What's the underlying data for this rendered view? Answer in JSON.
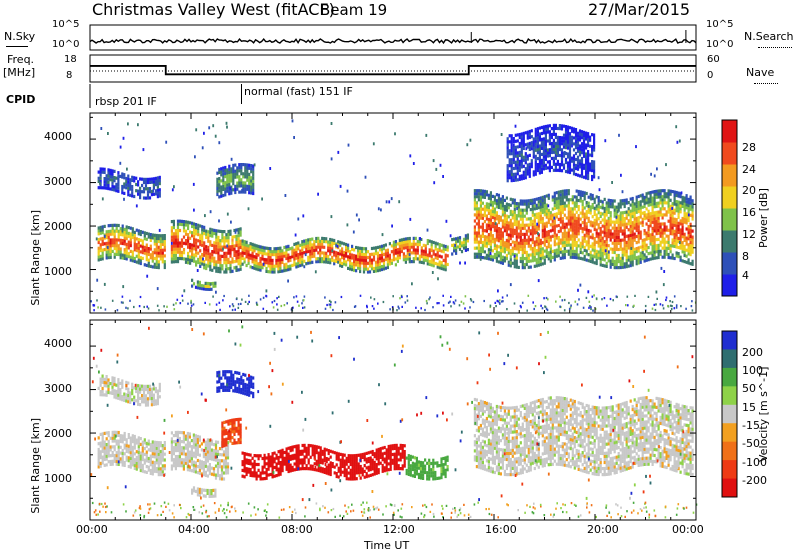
{
  "header": {
    "station": "Christmas Valley West (fitACF)",
    "beam": "Beam 19",
    "date": "27/Mar/2015"
  },
  "status_panels": {
    "nsky_label": "N.Sky",
    "nsearch_label": "N.Search",
    "noise_ticks": [
      "10^5",
      "10^0"
    ],
    "freq_label": "Freq.",
    "freq_unit": "[MHz]",
    "freq_ticks": [
      "18",
      "8"
    ],
    "nave_label": "Nave",
    "nave_ticks": [
      "60",
      "0"
    ],
    "cpid_label": "CPID",
    "cpid_segments": [
      {
        "name": "rbsp 201 IF",
        "start_h": 0,
        "end_h": 6
      },
      {
        "name": "normal (fast) 151 IF",
        "start_h": 6,
        "end_h": 24
      }
    ]
  },
  "axes": {
    "xlabel": "Time UT",
    "x_ticks": [
      "00:00",
      "04:00",
      "08:00",
      "12:00",
      "16:00",
      "20:00",
      "00:00"
    ],
    "ylabel": "Slant Range [km]",
    "y_ticks": [
      "1000",
      "2000",
      "3000",
      "4000"
    ]
  },
  "colorbars": {
    "power": {
      "label": "Power [dB]",
      "ticks": [
        "4",
        "8",
        "12",
        "16",
        "20",
        "24",
        "28"
      ],
      "colors": [
        "#1f1fe8",
        "#2e50b8",
        "#3c7a6e",
        "#7fc24a",
        "#f0d020",
        "#f39a20",
        "#f04a1e",
        "#e01414"
      ]
    },
    "velocity": {
      "label": "Velocity [m s^-1]",
      "ticks": [
        "200",
        "100",
        "50",
        "15",
        "-15",
        "-50",
        "-100",
        "-200"
      ],
      "colors": [
        "#1f2ed0",
        "#2f6e70",
        "#48a840",
        "#8ed248",
        "#c8c8c8",
        "#f2a020",
        "#f07018",
        "#ee3a14",
        "#e01010"
      ]
    }
  },
  "chart_data": [
    {
      "type": "heatmap",
      "title": "Power",
      "xlabel": "Time UT",
      "ylabel": "Slant Range [km]",
      "xlim_hours": [
        0,
        24
      ],
      "ylim_km": [
        0,
        4600
      ],
      "colorbar": {
        "label": "Power [dB]",
        "range": [
          0,
          32
        ]
      },
      "bands": [
        {
          "t0": 0.3,
          "t1": 3.0,
          "r0": 1200,
          "r1": 2000,
          "peak_db": 28
        },
        {
          "t0": 0.3,
          "t1": 2.8,
          "r0": 2800,
          "r1": 3300,
          "peak_db": 8
        },
        {
          "t0": 3.2,
          "t1": 6.0,
          "r0": 1100,
          "r1": 2100,
          "peak_db": 30
        },
        {
          "t0": 4.0,
          "t1": 5.0,
          "r0": 700,
          "r1": 900,
          "peak_db": 18
        },
        {
          "t0": 5.0,
          "t1": 6.5,
          "r0": 2700,
          "r1": 3400,
          "peak_db": 14
        },
        {
          "t0": 6.0,
          "t1": 14.2,
          "r0": 1100,
          "r1": 1700,
          "peak_db": 30
        },
        {
          "t0": 14.3,
          "t1": 15.0,
          "r0": 1500,
          "r1": 1900,
          "peak_db": 18
        },
        {
          "t0": 15.2,
          "t1": 23.9,
          "r0": 1200,
          "r1": 2800,
          "peak_db": 28
        },
        {
          "t0": 16.5,
          "t1": 20.0,
          "r0": 3200,
          "r1": 4300,
          "peak_db": 6
        }
      ]
    },
    {
      "type": "heatmap",
      "title": "Velocity",
      "xlabel": "Time UT",
      "ylabel": "Slant Range [km]",
      "xlim_hours": [
        0,
        24
      ],
      "ylim_km": [
        0,
        4600
      ],
      "colorbar": {
        "label": "Velocity [m s^-1]",
        "range": [
          -200,
          200
        ]
      },
      "bands": [
        {
          "t0": 0.3,
          "t1": 3.0,
          "r0": 1200,
          "r1": 2000,
          "vel": 0
        },
        {
          "t0": 0.3,
          "t1": 2.8,
          "r0": 2800,
          "r1": 3300,
          "vel": 0
        },
        {
          "t0": 3.2,
          "t1": 5.5,
          "r0": 1100,
          "r1": 2000,
          "vel": 0
        },
        {
          "t0": 4.0,
          "t1": 5.0,
          "r0": 700,
          "r1": 900,
          "vel": 0
        },
        {
          "t0": 5.2,
          "t1": 6.0,
          "r0": 1700,
          "r1": 2300,
          "vel": -80
        },
        {
          "t0": 5.0,
          "t1": 6.5,
          "r0": 2900,
          "r1": 3400,
          "vel": 180
        },
        {
          "t0": 6.0,
          "t1": 12.5,
          "r0": 1100,
          "r1": 1700,
          "vel": -180
        },
        {
          "t0": 12.5,
          "t1": 14.2,
          "r0": 1100,
          "r1": 1600,
          "vel": 40
        },
        {
          "t0": 15.2,
          "t1": 23.9,
          "r0": 1200,
          "r1": 2800,
          "vel": 0
        }
      ]
    }
  ]
}
